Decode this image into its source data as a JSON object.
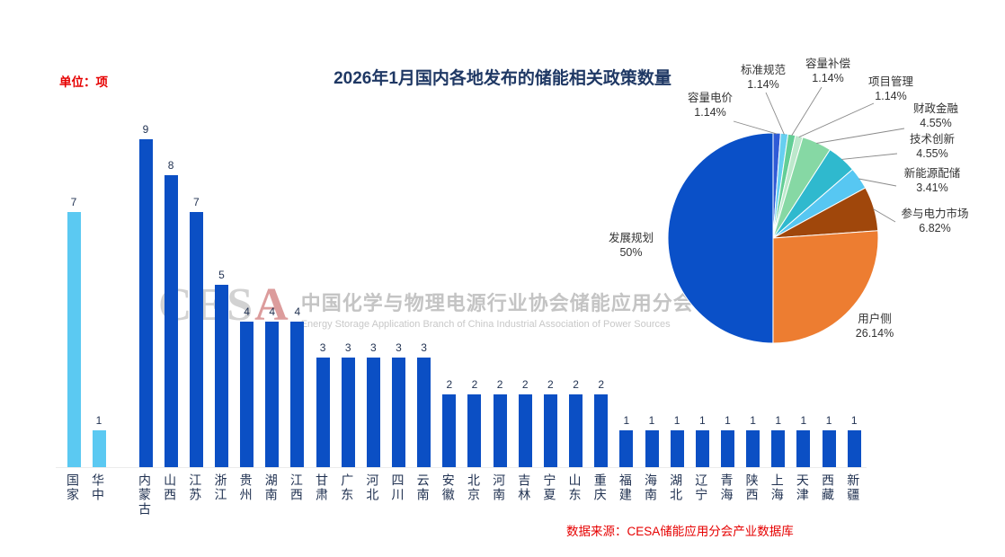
{
  "title": "2026年1月国内各地发布的储能相关政策数量",
  "unit_label": "单位：项",
  "source": "数据来源：CESA储能应用分会产业数据库",
  "watermark": {
    "logo_prefix": "CES",
    "logo_accent": "A",
    "cn": "中国化学与物理电源行业协会储能应用分会",
    "en": "Energy Storage Application Branch of China Industrial Association of Power Sources"
  },
  "chart_data": [
    {
      "type": "bar",
      "title": "2026年1月国内各地发布的储能相关政策数量",
      "unit": "项",
      "categories": [
        "国家",
        "华中",
        "内蒙古",
        "山西",
        "江苏",
        "浙江",
        "贵州",
        "湖南",
        "江西",
        "甘肃",
        "广东",
        "河北",
        "四川",
        "云南",
        "安徽",
        "北京",
        "河南",
        "吉林",
        "宁夏",
        "山东",
        "重庆",
        "福建",
        "海南",
        "湖北",
        "辽宁",
        "青海",
        "陕西",
        "上海",
        "天津",
        "西藏",
        "新疆"
      ],
      "values": [
        7,
        1,
        9,
        8,
        7,
        5,
        4,
        4,
        4,
        3,
        3,
        3,
        3,
        3,
        2,
        2,
        2,
        2,
        2,
        2,
        2,
        1,
        1,
        1,
        1,
        1,
        1,
        1,
        1,
        1,
        1
      ],
      "highlight_count": 2,
      "series_colors": {
        "highlight": "#5BC9F2",
        "default": "#0B4FC4"
      },
      "ylim": [
        0,
        9
      ],
      "grid": false,
      "value_labels": true
    },
    {
      "type": "pie",
      "labels": [
        "容量电价",
        "标准规范",
        "容量补偿",
        "项目管理",
        "财政金融",
        "技术创新",
        "新能源配储",
        "参与电力市场",
        "用户侧",
        "发展规划"
      ],
      "values": [
        1.14,
        1.14,
        1.14,
        1.14,
        4.55,
        4.55,
        3.41,
        6.82,
        26.14,
        50
      ],
      "percent_labels": [
        "1.14%",
        "1.14%",
        "1.14%",
        "1.14%",
        "4.55%",
        "4.55%",
        "3.41%",
        "6.82%",
        "26.14%",
        "50%"
      ],
      "colors": [
        "#2F5BD6",
        "#66CFF0",
        "#63CE96",
        "#BDE8CC",
        "#86D8A4",
        "#2FB9CE",
        "#57C7F2",
        "#A0470B",
        "#ED7D31",
        "#0A50C8"
      ],
      "start_angle": "12-oclock",
      "direction": "clockwise",
      "legend": "callout-labels"
    }
  ]
}
